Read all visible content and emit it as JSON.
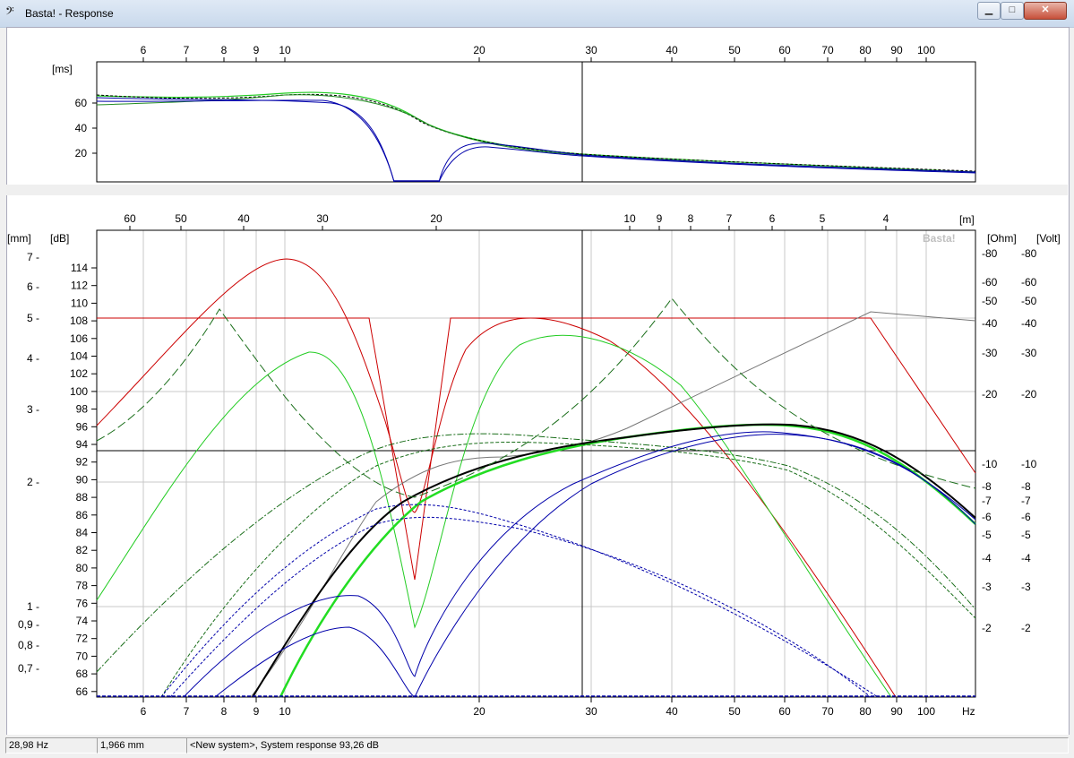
{
  "window": {
    "title": "Basta! - Response",
    "icon": "bass-clef-icon",
    "minimize_label": "▁",
    "maximize_label": "□",
    "close_label": "✕"
  },
  "top_plot": {
    "unit_label": "[ms]",
    "x_top_ticks": [
      "6",
      "7",
      "8",
      "9",
      "10",
      "20",
      "30",
      "40",
      "50",
      "60",
      "70",
      "80",
      "90",
      "100"
    ],
    "y_ticks": [
      "60",
      "40",
      "20"
    ]
  },
  "main_plot": {
    "brand": "Basta!",
    "top_axis_unit": "[m]",
    "top_axis_ticks": [
      "60",
      "50",
      "40",
      "30",
      "20",
      "10",
      "9",
      "8",
      "7",
      "6",
      "5",
      "4"
    ],
    "x_bottom_ticks": [
      "6",
      "7",
      "8",
      "9",
      "10",
      "20",
      "30",
      "40",
      "50",
      "60",
      "70",
      "80",
      "90",
      "100"
    ],
    "x_unit": "Hz",
    "left_mm_unit": "[mm]",
    "left_mm_ticks": [
      "7",
      "6",
      "5",
      "4",
      "3",
      "2",
      "1",
      "0,9",
      "0,8",
      "0,7"
    ],
    "left_db_unit": "[dB]",
    "left_db_ticks": [
      "114",
      "112",
      "110",
      "108",
      "106",
      "104",
      "102",
      "100",
      "98",
      "96",
      "94",
      "92",
      "90",
      "88",
      "86",
      "84",
      "82",
      "80",
      "78",
      "76",
      "74",
      "72",
      "70",
      "68",
      "66"
    ],
    "ohm_unit": "[Ohm]",
    "ohm_ticks": [
      "80",
      "60",
      "50",
      "40",
      "30",
      "20",
      "10",
      "8",
      "7",
      "6",
      "5",
      "4",
      "3",
      "2"
    ],
    "volt_unit": "[Volt]",
    "volt_ticks": [
      "-80",
      "-60",
      "-50",
      "-40",
      "-30",
      "-20",
      "-10",
      "-8",
      "-7",
      "-6",
      "-5",
      "-4",
      "-3",
      "-2"
    ]
  },
  "status": {
    "frequency": "28,98 Hz",
    "excursion": "1,966 mm",
    "message": "<New system>, System response 93,26 dB"
  },
  "colors": {
    "red": "#c00000",
    "green": "#22cc22",
    "dark_green": "#1a6e1a",
    "blue": "#0000a0",
    "gray": "#7f7f7f",
    "black": "#000000"
  }
}
